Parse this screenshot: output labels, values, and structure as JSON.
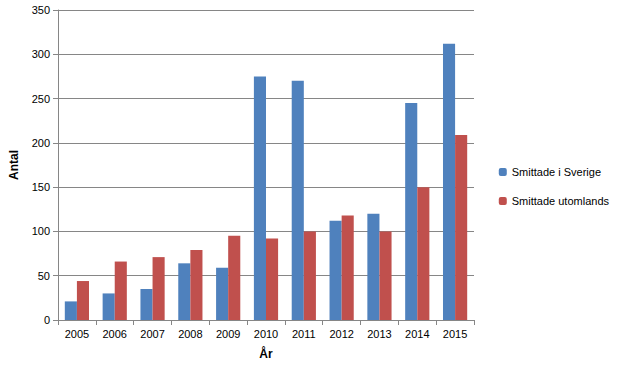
{
  "chart_data": {
    "type": "bar",
    "x_label": "År",
    "y_label": "Antal",
    "categories": [
      "2005",
      "2006",
      "2007",
      "2008",
      "2009",
      "2010",
      "2011",
      "2012",
      "2013",
      "2014",
      "2015"
    ],
    "series": [
      {
        "name": "Smittade i Sverige",
        "color": "#4f81bd",
        "values": [
          21,
          30,
          35,
          64,
          59,
          275,
          270,
          112,
          120,
          245,
          312
        ]
      },
      {
        "name": "Smittade utomlands",
        "color": "#c0504d",
        "values": [
          44,
          66,
          71,
          79,
          95,
          92,
          100,
          118,
          100,
          150,
          209
        ]
      }
    ],
    "ylim": [
      0,
      350
    ],
    "yticks": [
      0,
      50,
      100,
      150,
      200,
      250,
      300,
      350
    ],
    "grid": true,
    "legend": "right"
  }
}
